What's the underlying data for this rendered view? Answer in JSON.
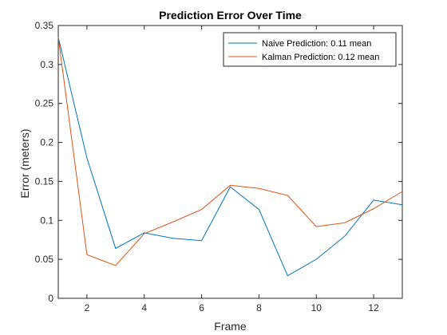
{
  "chart_data": {
    "type": "line",
    "title": "Prediction Error Over Time",
    "xlabel": "Frame",
    "ylabel": "Error (meters)",
    "xlim": [
      1,
      13
    ],
    "ylim": [
      0,
      0.35
    ],
    "xticks": [
      2,
      4,
      6,
      8,
      10,
      12
    ],
    "yticks": [
      0,
      0.05,
      0.1,
      0.15,
      0.2,
      0.25,
      0.3,
      0.35
    ],
    "grid": false,
    "legend_position": "top-right",
    "x": [
      1,
      2,
      3,
      4,
      5,
      6,
      7,
      8,
      9,
      10,
      11,
      12,
      13
    ],
    "series": [
      {
        "name": "Naive Prediction: 0.11 mean",
        "color": "#0072BD",
        "values": [
          0.335,
          0.18,
          0.064,
          0.084,
          0.077,
          0.074,
          0.143,
          0.114,
          0.029,
          0.05,
          0.08,
          0.126,
          0.12
        ]
      },
      {
        "name": "Kalman Prediction: 0.12 mean",
        "color": "#D95319",
        "values": [
          0.335,
          0.056,
          0.042,
          0.083,
          0.098,
          0.114,
          0.145,
          0.141,
          0.132,
          0.092,
          0.097,
          0.115,
          0.137
        ]
      }
    ]
  }
}
